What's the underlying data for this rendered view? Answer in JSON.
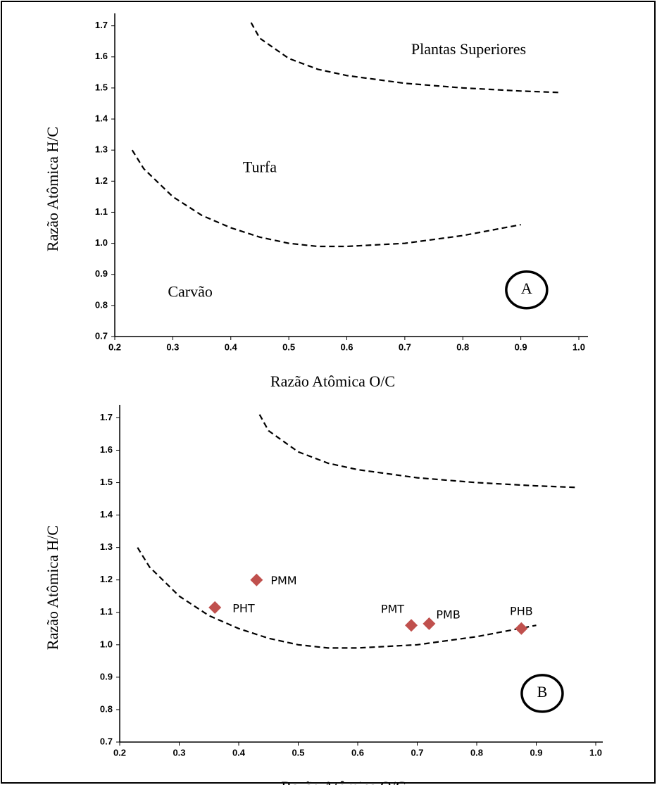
{
  "chart_data": [
    {
      "type": "line",
      "xlabel": "Razão Atômica O/C",
      "ylabel": "Razão Atômica H/C",
      "xlim": [
        0.2,
        1.0
      ],
      "xticks": [
        0.2,
        0.3,
        0.4,
        0.5,
        0.6,
        0.7,
        0.8,
        0.9,
        {
          "value": 1.0,
          "label": "1.0"
        }
      ],
      "ylim": [
        0.7,
        1.74
      ],
      "yticks": [
        0.7,
        0.8,
        0.9,
        {
          "value": 1.0,
          "label": "1.0"
        },
        1.1,
        1.2,
        1.3,
        1.4,
        1.5,
        1.6,
        1.7
      ],
      "series": [
        {
          "type": "line",
          "color": "#000000",
          "dashed": true,
          "x": [
            0.435,
            0.45,
            0.5,
            0.55,
            0.6,
            0.7,
            0.8,
            0.9,
            0.97
          ],
          "values": [
            1.71,
            1.66,
            1.595,
            1.56,
            1.54,
            1.515,
            1.5,
            1.49,
            1.485
          ]
        },
        {
          "type": "line",
          "color": "#000000",
          "dashed": true,
          "x": [
            0.23,
            0.25,
            0.3,
            0.35,
            0.4,
            0.45,
            0.5,
            0.55,
            0.6,
            0.7,
            0.8,
            0.9
          ],
          "values": [
            1.3,
            1.24,
            1.15,
            1.09,
            1.05,
            1.02,
            1.0,
            0.99,
            0.99,
            1.0,
            1.025,
            1.06
          ]
        }
      ],
      "annotations": [
        {
          "text": "Plantas Superiores",
          "x": 0.81,
          "y": 1.62
        },
        {
          "text": "Turfa",
          "x": 0.45,
          "y": 1.24
        },
        {
          "text": "Carvão",
          "x": 0.33,
          "y": 0.84
        },
        {
          "text": "A",
          "x": 0.91,
          "y": 0.85,
          "circle": true
        }
      ]
    },
    {
      "type": "line",
      "xlabel": "Razão Atômica O/C",
      "ylabel": "Razão Atômica H/C",
      "xlim": [
        0.2,
        1.0
      ],
      "xticks": [
        0.2,
        0.3,
        0.4,
        0.5,
        0.6,
        0.7,
        0.8,
        0.9,
        {
          "value": 1.0,
          "label": "1.0"
        }
      ],
      "ylim": [
        0.7,
        1.74
      ],
      "yticks": [
        0.7,
        0.8,
        0.9,
        {
          "value": 1.0,
          "label": "1.0"
        },
        1.1,
        1.2,
        1.3,
        1.4,
        1.5,
        1.6,
        1.7
      ],
      "series": [
        {
          "type": "line",
          "color": "#000000",
          "dashed": true,
          "x": [
            0.435,
            0.45,
            0.5,
            0.55,
            0.6,
            0.7,
            0.8,
            0.9,
            0.97
          ],
          "values": [
            1.71,
            1.66,
            1.595,
            1.56,
            1.54,
            1.515,
            1.5,
            1.49,
            1.485
          ]
        },
        {
          "type": "line",
          "color": "#000000",
          "dashed": true,
          "x": [
            0.23,
            0.25,
            0.3,
            0.35,
            0.4,
            0.45,
            0.5,
            0.55,
            0.6,
            0.7,
            0.8,
            0.9
          ],
          "values": [
            1.3,
            1.24,
            1.15,
            1.09,
            1.05,
            1.02,
            1.0,
            0.99,
            0.99,
            1.0,
            1.025,
            1.06
          ]
        },
        {
          "type": "scatter",
          "color": "#c0504d",
          "marker": "diamond",
          "x": [
            0.36,
            0.43,
            0.69,
            0.72,
            0.875
          ],
          "values": [
            1.115,
            1.2,
            1.06,
            1.065,
            1.05
          ],
          "point_labels": [
            "PHT",
            "PMM",
            "PMT",
            "PMB",
            "PHB"
          ]
        }
      ],
      "annotations": [
        {
          "text": "B",
          "x": 0.91,
          "y": 0.85,
          "circle": true
        }
      ]
    }
  ]
}
